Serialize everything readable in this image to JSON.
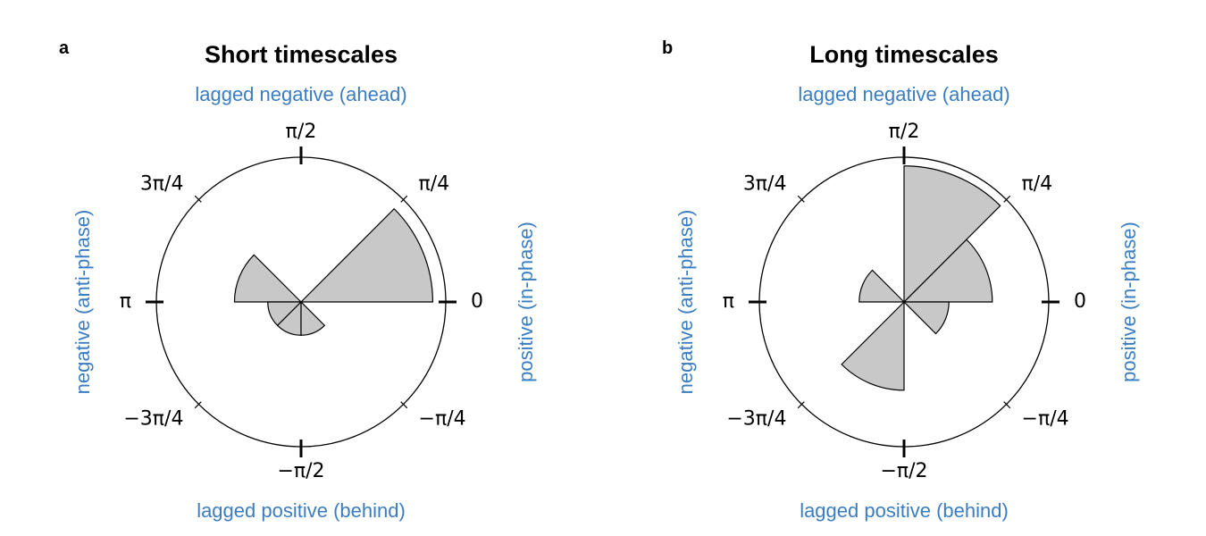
{
  "colors": {
    "side_label": "#3b7dc1",
    "wedge_fill": "#c8c8c8",
    "wedge_stroke": "#000000",
    "circle_stroke": "#000000"
  },
  "chart_data": [
    {
      "type": "rose",
      "panel_letter": "a",
      "title": "Short timescales",
      "side_labels": {
        "top": "lagged negative (ahead)",
        "bottom": "lagged positive (behind)",
        "left": "negative (anti-phase)",
        "right": "positive (in-phase)"
      },
      "angle_ticks": [
        {
          "angle": 0,
          "label": "0",
          "major": true
        },
        {
          "angle": 0.7854,
          "label": "π/4",
          "major": false
        },
        {
          "angle": 1.5708,
          "label": "π/2",
          "major": true
        },
        {
          "angle": 2.3562,
          "label": "3π/4",
          "major": false
        },
        {
          "angle": 3.1416,
          "label": "π",
          "major": true
        },
        {
          "angle": -2.3562,
          "label": "−3π/4",
          "major": false
        },
        {
          "angle": -1.5708,
          "label": "−π/2",
          "major": true
        },
        {
          "angle": -0.7854,
          "label": "−π/4",
          "major": false
        }
      ],
      "bins": [
        {
          "from": 0,
          "to": 0.7854,
          "value": 0.91
        },
        {
          "from": 0.7854,
          "to": 1.5708,
          "value": 0
        },
        {
          "from": 1.5708,
          "to": 2.3562,
          "value": 0
        },
        {
          "from": 2.3562,
          "to": 3.1416,
          "value": 0.46
        },
        {
          "from": -3.1416,
          "to": -2.3562,
          "value": 0.23
        },
        {
          "from": -2.3562,
          "to": -1.5708,
          "value": 0.23
        },
        {
          "from": -1.5708,
          "to": -0.7854,
          "value": 0.23
        },
        {
          "from": -0.7854,
          "to": 0,
          "value": 0
        }
      ],
      "rmax": 1.0
    },
    {
      "type": "rose",
      "panel_letter": "b",
      "title": "Long timescales",
      "side_labels": {
        "top": "lagged negative (ahead)",
        "bottom": "lagged positive (behind)",
        "left": "negative (anti-phase)",
        "right": "positive (in-phase)"
      },
      "angle_ticks": [
        {
          "angle": 0,
          "label": "0",
          "major": true
        },
        {
          "angle": 0.7854,
          "label": "π/4",
          "major": false
        },
        {
          "angle": 1.5708,
          "label": "π/2",
          "major": true
        },
        {
          "angle": 2.3562,
          "label": "3π/4",
          "major": false
        },
        {
          "angle": 3.1416,
          "label": "π",
          "major": true
        },
        {
          "angle": -2.3562,
          "label": "−3π/4",
          "major": false
        },
        {
          "angle": -1.5708,
          "label": "−π/2",
          "major": true
        },
        {
          "angle": -0.7854,
          "label": "−π/4",
          "major": false
        }
      ],
      "bins": [
        {
          "from": 0,
          "to": 0.7854,
          "value": 0.61
        },
        {
          "from": 0.7854,
          "to": 1.5708,
          "value": 0.94
        },
        {
          "from": 1.5708,
          "to": 2.3562,
          "value": 0
        },
        {
          "from": 2.3562,
          "to": 3.1416,
          "value": 0.31
        },
        {
          "from": -3.1416,
          "to": -2.3562,
          "value": 0
        },
        {
          "from": -2.3562,
          "to": -1.5708,
          "value": 0.61
        },
        {
          "from": -1.5708,
          "to": -0.7854,
          "value": 0
        },
        {
          "from": -0.7854,
          "to": 0,
          "value": 0.31
        }
      ],
      "rmax": 1.0
    }
  ]
}
